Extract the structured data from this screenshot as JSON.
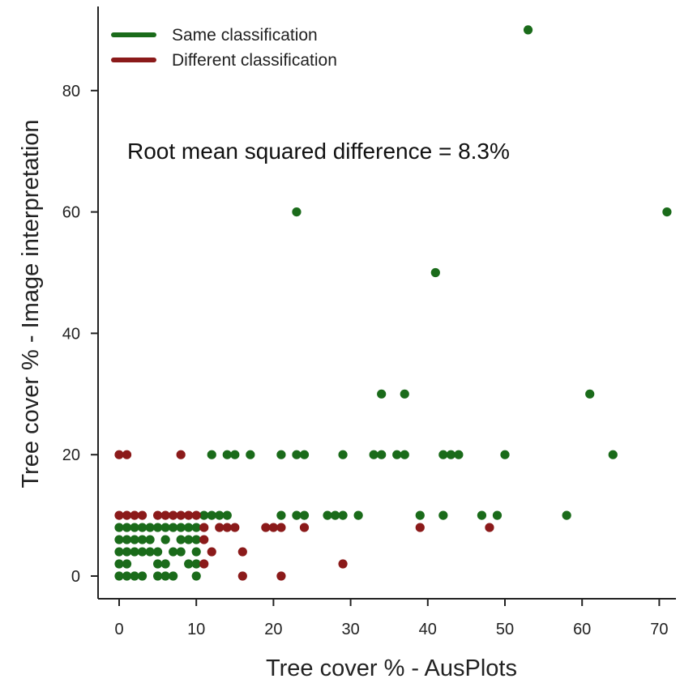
{
  "chart_data": {
    "type": "scatter",
    "title": "",
    "xlabel": "Tree cover % - AusPlots",
    "ylabel": "Tree cover % - Image interpretation",
    "xlim": [
      -2.5,
      73.5
    ],
    "ylim": [
      -3.5,
      93
    ],
    "xticks": [
      0,
      10,
      20,
      30,
      40,
      50,
      60,
      70
    ],
    "yticks": [
      0,
      20,
      40,
      60,
      80
    ],
    "grid": false,
    "legend_position": "top-left",
    "annotation": "Root mean squared difference = 8.3%",
    "series": [
      {
        "name": "Same classification",
        "color": "#1a6b1a",
        "points": [
          [
            53,
            90
          ],
          [
            23,
            60
          ],
          [
            71,
            60
          ],
          [
            41,
            50
          ],
          [
            34,
            30
          ],
          [
            37,
            30
          ],
          [
            61,
            30
          ],
          [
            12,
            20
          ],
          [
            14,
            20
          ],
          [
            15,
            20
          ],
          [
            17,
            20
          ],
          [
            21,
            20
          ],
          [
            23,
            20
          ],
          [
            24,
            20
          ],
          [
            29,
            20
          ],
          [
            33,
            20
          ],
          [
            34,
            20
          ],
          [
            36,
            20
          ],
          [
            37,
            20
          ],
          [
            42,
            20
          ],
          [
            43,
            20
          ],
          [
            44,
            20
          ],
          [
            50,
            20
          ],
          [
            64,
            20
          ],
          [
            11,
            10
          ],
          [
            12,
            10
          ],
          [
            13,
            10
          ],
          [
            14,
            10
          ],
          [
            21,
            10
          ],
          [
            23,
            10
          ],
          [
            24,
            10
          ],
          [
            27,
            10
          ],
          [
            28,
            10
          ],
          [
            29,
            10
          ],
          [
            31,
            10
          ],
          [
            39,
            10
          ],
          [
            42,
            10
          ],
          [
            47,
            10
          ],
          [
            49,
            10
          ],
          [
            58,
            10
          ],
          [
            0,
            8
          ],
          [
            1,
            8
          ],
          [
            2,
            8
          ],
          [
            3,
            8
          ],
          [
            4,
            8
          ],
          [
            5,
            8
          ],
          [
            6,
            8
          ],
          [
            7,
            8
          ],
          [
            8,
            8
          ],
          [
            9,
            8
          ],
          [
            10,
            8
          ],
          [
            0,
            6
          ],
          [
            1,
            6
          ],
          [
            2,
            6
          ],
          [
            3,
            6
          ],
          [
            4,
            6
          ],
          [
            6,
            6
          ],
          [
            8,
            6
          ],
          [
            9,
            6
          ],
          [
            10,
            6
          ],
          [
            0,
            4
          ],
          [
            1,
            4
          ],
          [
            2,
            4
          ],
          [
            3,
            4
          ],
          [
            4,
            4
          ],
          [
            5,
            4
          ],
          [
            7,
            4
          ],
          [
            8,
            4
          ],
          [
            10,
            4
          ],
          [
            0,
            2
          ],
          [
            1,
            2
          ],
          [
            5,
            2
          ],
          [
            6,
            2
          ],
          [
            9,
            2
          ],
          [
            10,
            2
          ],
          [
            0,
            0
          ],
          [
            1,
            0
          ],
          [
            2,
            0
          ],
          [
            3,
            0
          ],
          [
            5,
            0
          ],
          [
            6,
            0
          ],
          [
            7,
            0
          ],
          [
            10,
            0
          ]
        ]
      },
      {
        "name": "Different classification",
        "color": "#8b1a1a",
        "points": [
          [
            0,
            20
          ],
          [
            1,
            20
          ],
          [
            8,
            20
          ],
          [
            0,
            10
          ],
          [
            1,
            10
          ],
          [
            2,
            10
          ],
          [
            3,
            10
          ],
          [
            5,
            10
          ],
          [
            6,
            10
          ],
          [
            7,
            10
          ],
          [
            8,
            10
          ],
          [
            9,
            10
          ],
          [
            10,
            10
          ],
          [
            11,
            8
          ],
          [
            13,
            8
          ],
          [
            14,
            8
          ],
          [
            15,
            8
          ],
          [
            19,
            8
          ],
          [
            20,
            8
          ],
          [
            21,
            8
          ],
          [
            24,
            8
          ],
          [
            39,
            8
          ],
          [
            48,
            8
          ],
          [
            11,
            6
          ],
          [
            12,
            4
          ],
          [
            16,
            4
          ],
          [
            11,
            2
          ],
          [
            29,
            2
          ],
          [
            16,
            0
          ],
          [
            21,
            0
          ]
        ]
      }
    ]
  }
}
